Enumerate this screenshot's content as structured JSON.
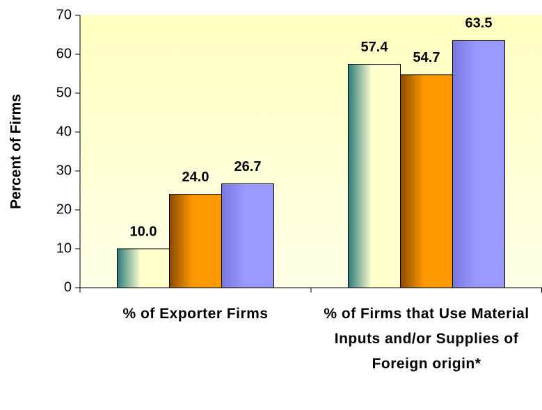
{
  "chart_data": {
    "type": "bar",
    "y_label": "Percent of Firms",
    "categories": [
      "% of Exporter Firms",
      "% of Firms that Use Material Inputs and/or Supplies of Foreign origin*"
    ],
    "series": [
      {
        "color": "#ffffcc",
        "values": [
          10.0,
          57.4
        ],
        "value_labels": [
          "10.0",
          "57.4"
        ]
      },
      {
        "color": "#ff9900",
        "values": [
          24.0,
          54.7
        ],
        "value_labels": [
          "24.0",
          "54.7"
        ]
      },
      {
        "color": "#9999ff",
        "values": [
          26.7,
          63.5
        ],
        "value_labels": [
          "26.7",
          "63.5"
        ]
      }
    ],
    "ylim": [
      0,
      70
    ],
    "yticks": [
      0,
      10,
      20,
      30,
      40,
      50,
      60,
      70
    ],
    "grid": false
  }
}
